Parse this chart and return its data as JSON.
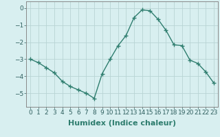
{
  "xlabel": "Humidex (Indice chaleur)",
  "ylabel": "",
  "x": [
    0,
    1,
    2,
    3,
    4,
    5,
    6,
    7,
    8,
    9,
    10,
    11,
    12,
    13,
    14,
    15,
    16,
    17,
    18,
    19,
    20,
    21,
    22,
    23
  ],
  "y": [
    -3.0,
    -3.2,
    -3.5,
    -3.8,
    -4.3,
    -4.6,
    -4.8,
    -5.0,
    -5.3,
    -3.85,
    -3.0,
    -2.2,
    -1.6,
    -0.55,
    -0.1,
    -0.15,
    -0.65,
    -1.3,
    -2.15,
    -2.2,
    -3.05,
    -3.25,
    -3.75,
    -4.4
  ],
  "line_color": "#2e7d6e",
  "marker": "+",
  "marker_size": 4,
  "line_width": 1.0,
  "bg_color": "#d8eff0",
  "grid_color": "#b8d4d4",
  "xlim": [
    -0.5,
    23.5
  ],
  "ylim": [
    -5.8,
    0.4
  ],
  "yticks": [
    0,
    -1,
    -2,
    -3,
    -4,
    -5
  ],
  "xticks": [
    0,
    1,
    2,
    3,
    4,
    5,
    6,
    7,
    8,
    9,
    10,
    11,
    12,
    13,
    14,
    15,
    16,
    17,
    18,
    19,
    20,
    21,
    22,
    23
  ],
  "tick_fontsize": 6.5,
  "label_fontsize": 8
}
